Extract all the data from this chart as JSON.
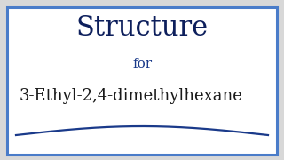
{
  "title": "Structure",
  "subtitle": "for",
  "compound": "3-Ethyl-2,4-dimethylhexane",
  "title_color": "#0d1f5c",
  "subtitle_color": "#1a3a8a",
  "text_color": "#1a1a1a",
  "border_color": "#4a7cc9",
  "background_inner": "#ffffff",
  "background_outer": "#d8d8d8",
  "title_fontsize": 22,
  "subtitle_fontsize": 11,
  "compound_fontsize": 13,
  "wave_color": "#1a3a8a"
}
